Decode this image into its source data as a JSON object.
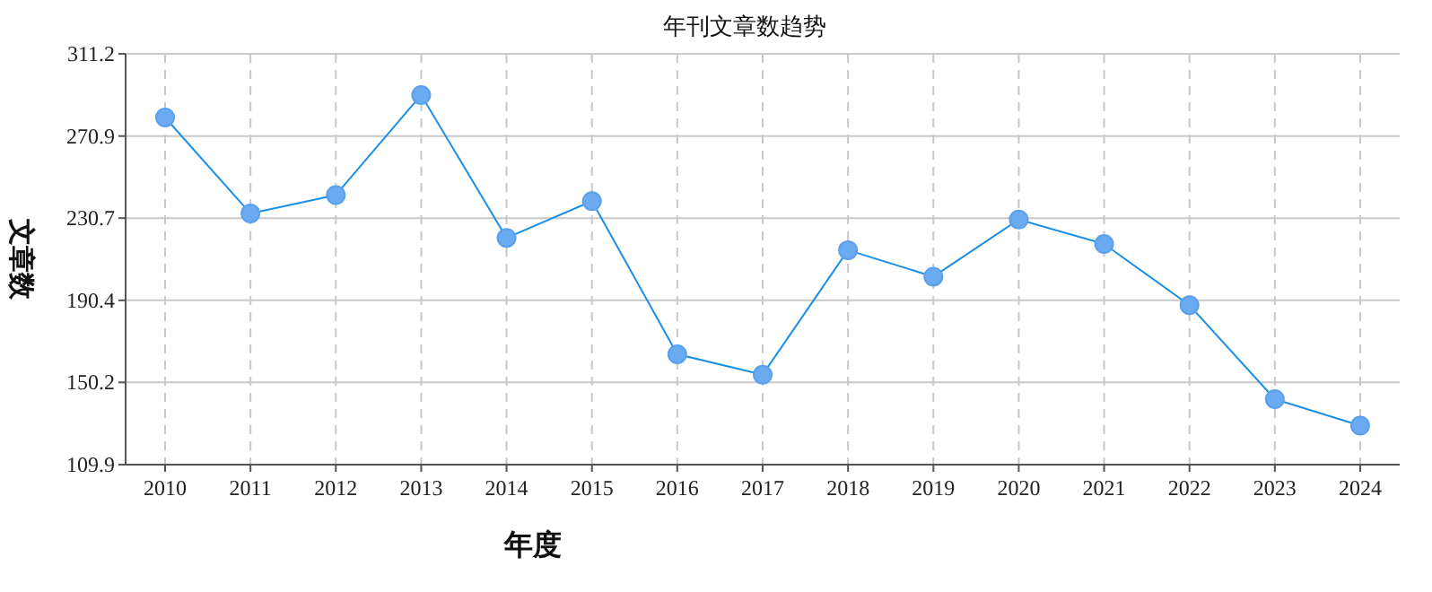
{
  "chart_data": {
    "type": "line",
    "title": "年刊文章数趋势",
    "xlabel": "年度",
    "ylabel": "文章数",
    "categories": [
      "2010",
      "2011",
      "2012",
      "2013",
      "2014",
      "2015",
      "2016",
      "2017",
      "2018",
      "2019",
      "2020",
      "2021",
      "2022",
      "2023",
      "2024"
    ],
    "series": [
      {
        "color": "#1a8fe8",
        "values": [
          280,
          233,
          242,
          291,
          221,
          239,
          164,
          154,
          215,
          202,
          230,
          218,
          188,
          142,
          129
        ]
      }
    ],
    "ylim": [
      109.9,
      311.2
    ],
    "yticks": [
      109.9,
      150.2,
      190.4,
      230.7,
      270.9,
      311.2
    ],
    "grid": true,
    "marker": "circle",
    "line_style": "solid"
  }
}
